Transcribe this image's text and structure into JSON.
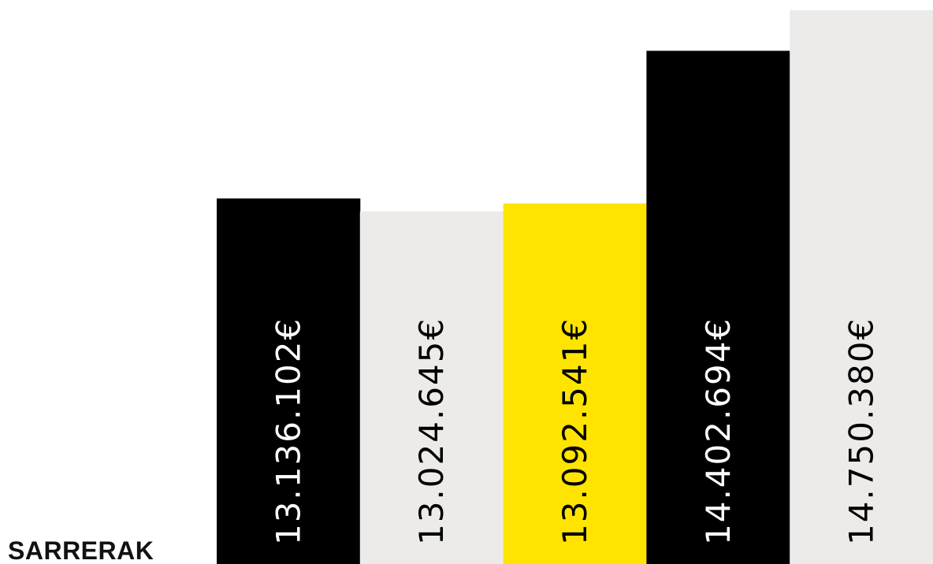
{
  "chart_data": {
    "type": "bar",
    "category_label": "SARRERAK",
    "currency_symbol": "€",
    "bars": [
      {
        "value": 13136102,
        "label": "13.136.102€",
        "color": "#000000",
        "text_color": "#ffffff"
      },
      {
        "value": 13024645,
        "label": "13.024.645€",
        "color": "#edebe9",
        "text_color": "#000000"
      },
      {
        "value": 13092541,
        "label": "13.092.541€",
        "color": "#ffe400",
        "text_color": "#000000"
      },
      {
        "value": 14402694,
        "label": "14.402.694€",
        "color": "#000000",
        "text_color": "#ffffff"
      },
      {
        "value": 14750380,
        "label": "14.750.380€",
        "color": "#edebe9",
        "text_color": "#000000"
      }
    ],
    "ylim": [
      10000000,
      14750380
    ],
    "grid": false,
    "legend": "none"
  }
}
